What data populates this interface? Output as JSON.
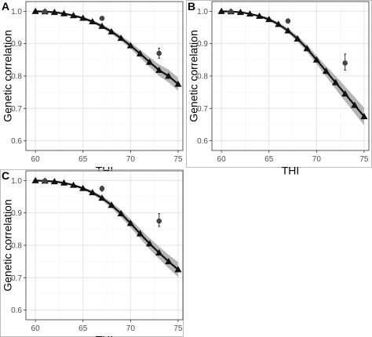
{
  "figure": {
    "panels": [
      {
        "letter": "A",
        "xlabel": "THI",
        "ylabel": "Genetic correlation"
      },
      {
        "letter": "B",
        "xlabel": "THI",
        "ylabel": "Genetic correlation"
      },
      {
        "letter": "C",
        "xlabel": "THI",
        "ylabel": "Genetic correlation"
      }
    ]
  },
  "chart_data": [
    {
      "panel": "A",
      "type": "line",
      "xlabel": "THI",
      "ylabel": "Genetic correlation",
      "xlim": [
        59,
        75.5
      ],
      "ylim": [
        0.57,
        1.03
      ],
      "x_ticks": [
        60,
        65,
        70,
        75
      ],
      "y_ticks": [
        0.6,
        0.7,
        0.8,
        0.9,
        1.0
      ],
      "x_tick_labels": [
        "60",
        "65",
        "70",
        "75"
      ],
      "y_tick_labels": [
        "0.6",
        "0.7",
        "0.8",
        "0.9",
        "1.0"
      ],
      "grid": true,
      "series": [
        {
          "style": "line-triangle-markers-with-band",
          "x": [
            60,
            61,
            62,
            63,
            64,
            65,
            66,
            67,
            68,
            69,
            70,
            71,
            72,
            73,
            74,
            75
          ],
          "y": [
            1.0,
            0.999,
            0.997,
            0.993,
            0.987,
            0.979,
            0.968,
            0.954,
            0.937,
            0.917,
            0.894,
            0.869,
            0.843,
            0.818,
            0.8,
            0.775
          ],
          "band_lower": [
            1.0,
            0.999,
            0.996,
            0.991,
            0.984,
            0.975,
            0.963,
            0.948,
            0.93,
            0.909,
            0.884,
            0.857,
            0.828,
            0.8,
            0.78,
            0.755
          ],
          "band_upper": [
            1.0,
            0.999,
            0.998,
            0.995,
            0.99,
            0.983,
            0.973,
            0.96,
            0.944,
            0.925,
            0.904,
            0.881,
            0.858,
            0.836,
            0.82,
            0.795
          ]
        },
        {
          "style": "point-with-errorbar",
          "x": [
            61,
            67,
            73
          ],
          "y": [
            0.999,
            0.978,
            0.87
          ],
          "error_lower": [
            0.997,
            0.972,
            0.855
          ],
          "error_upper": [
            1.0,
            0.984,
            0.886
          ]
        }
      ]
    },
    {
      "panel": "B",
      "type": "line",
      "xlabel": "THI",
      "ylabel": "Genetic correlation",
      "xlim": [
        59,
        75.5
      ],
      "ylim": [
        0.57,
        1.03
      ],
      "x_ticks": [
        60,
        65,
        70,
        75
      ],
      "y_ticks": [
        0.6,
        0.7,
        0.8,
        0.9,
        1.0
      ],
      "x_tick_labels": [
        "60",
        "65",
        "70",
        "75"
      ],
      "y_tick_labels": [
        "0.6",
        "0.7",
        "0.8",
        "0.9",
        "1.0"
      ],
      "grid": true,
      "series": [
        {
          "style": "line-triangle-markers-with-band",
          "x": [
            60,
            61,
            62,
            63,
            64,
            65,
            66,
            67,
            68,
            69,
            70,
            71,
            72,
            73,
            74,
            75
          ],
          "y": [
            1.0,
            0.999,
            0.997,
            0.992,
            0.985,
            0.975,
            0.96,
            0.94,
            0.915,
            0.885,
            0.85,
            0.815,
            0.78,
            0.745,
            0.71,
            0.675
          ],
          "band_lower": [
            1.0,
            0.999,
            0.996,
            0.99,
            0.982,
            0.97,
            0.954,
            0.933,
            0.906,
            0.874,
            0.837,
            0.799,
            0.76,
            0.722,
            0.685,
            0.648
          ],
          "band_upper": [
            1.0,
            0.999,
            0.998,
            0.994,
            0.988,
            0.98,
            0.966,
            0.947,
            0.924,
            0.896,
            0.863,
            0.831,
            0.8,
            0.768,
            0.735,
            0.702
          ]
        },
        {
          "style": "point-with-errorbar",
          "x": [
            61,
            67,
            73
          ],
          "y": [
            0.999,
            0.97,
            0.84
          ],
          "error_lower": [
            0.997,
            0.963,
            0.818
          ],
          "error_upper": [
            1.0,
            0.977,
            0.868
          ]
        }
      ]
    },
    {
      "panel": "C",
      "type": "line",
      "xlabel": "THI",
      "ylabel": "Genetic correlation",
      "xlim": [
        59,
        75.5
      ],
      "ylim": [
        0.57,
        1.03
      ],
      "x_ticks": [
        60,
        65,
        70,
        75
      ],
      "y_ticks": [
        0.6,
        0.7,
        0.8,
        0.9,
        1.0
      ],
      "x_tick_labels": [
        "60",
        "65",
        "70",
        "75"
      ],
      "y_tick_labels": [
        "0.6",
        "0.7",
        "0.8",
        "0.9",
        "1.0"
      ],
      "grid": true,
      "series": [
        {
          "style": "line-triangle-markers-with-band",
          "x": [
            60,
            61,
            62,
            63,
            64,
            65,
            66,
            67,
            68,
            69,
            70,
            71,
            72,
            73,
            74,
            75
          ],
          "y": [
            1.0,
            0.999,
            0.997,
            0.993,
            0.986,
            0.976,
            0.963,
            0.946,
            0.924,
            0.898,
            0.868,
            0.836,
            0.805,
            0.777,
            0.75,
            0.725
          ],
          "band_lower": [
            1.0,
            0.999,
            0.996,
            0.991,
            0.983,
            0.972,
            0.957,
            0.939,
            0.915,
            0.887,
            0.855,
            0.821,
            0.788,
            0.758,
            0.729,
            0.702
          ],
          "band_upper": [
            1.0,
            0.999,
            0.998,
            0.995,
            0.989,
            0.98,
            0.969,
            0.953,
            0.933,
            0.909,
            0.881,
            0.851,
            0.822,
            0.796,
            0.771,
            0.748
          ]
        },
        {
          "style": "point-with-errorbar",
          "x": [
            61,
            67,
            73
          ],
          "y": [
            0.999,
            0.975,
            0.875
          ],
          "error_lower": [
            0.997,
            0.967,
            0.858
          ],
          "error_upper": [
            1.0,
            0.983,
            0.898
          ]
        }
      ]
    }
  ]
}
